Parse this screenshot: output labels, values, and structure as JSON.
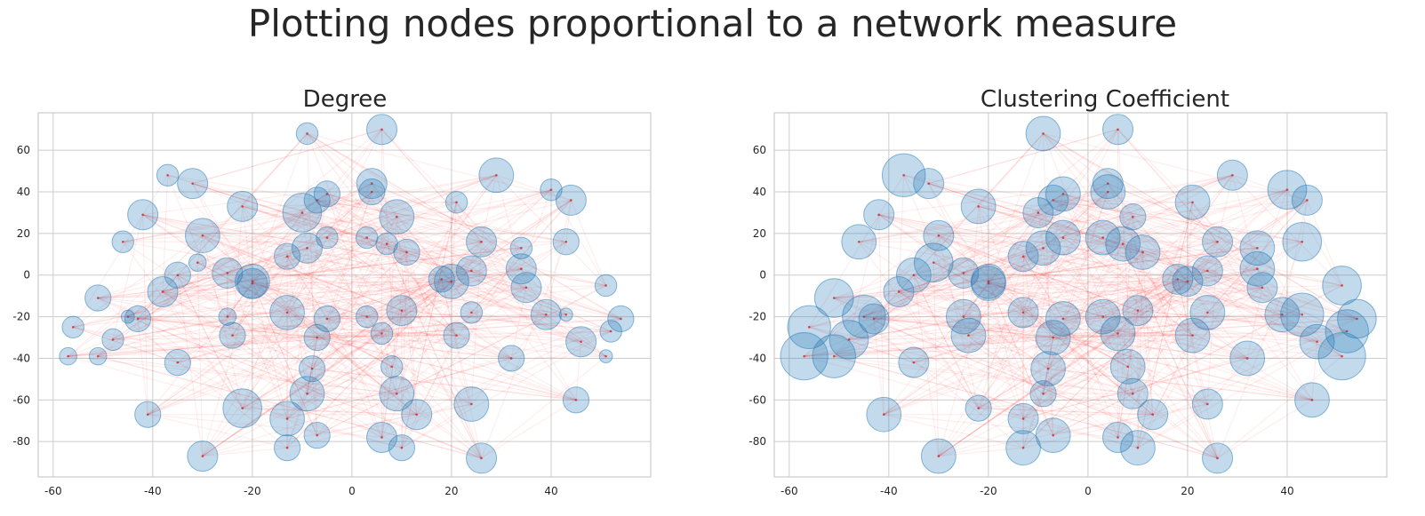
{
  "figure": {
    "suptitle": "Plotting nodes proportional to a network measure"
  },
  "colors": {
    "node_fill": "#1f77b4",
    "edge": "#ff0000",
    "center_dot": "#d62728",
    "grid": "#cccccc",
    "spine": "#cccccc",
    "text": "#262626"
  },
  "chart_data": [
    {
      "type": "scatter",
      "title": "Degree",
      "xlabel": "",
      "ylabel": "",
      "xlim": [
        -63,
        60
      ],
      "ylim": [
        -97,
        78
      ],
      "xticks": [
        -60,
        -40,
        -20,
        0,
        20,
        40
      ],
      "yticks": [
        -80,
        -60,
        -40,
        -20,
        0,
        20,
        40,
        60
      ],
      "grid": true,
      "size_measure": "degree"
    },
    {
      "type": "scatter",
      "title": "Clustering Coefficient",
      "xlabel": "",
      "ylabel": "",
      "xlim": [
        -63,
        60
      ],
      "ylim": [
        -97,
        78
      ],
      "xticks": [
        -60,
        -40,
        -20,
        0,
        20,
        40
      ],
      "yticks": [
        -80,
        -60,
        -40,
        -20,
        0,
        20,
        40,
        60
      ],
      "grid": true,
      "size_measure": "clustering"
    }
  ],
  "nodes": [
    {
      "x": -57,
      "y": -39,
      "degree": 2,
      "clustering": 9
    },
    {
      "x": -56,
      "y": -25,
      "degree": 3,
      "clustering": 8
    },
    {
      "x": -51,
      "y": -11,
      "degree": 4,
      "clustering": 7
    },
    {
      "x": -51,
      "y": -39,
      "degree": 2,
      "clustering": 8
    },
    {
      "x": -48,
      "y": -31,
      "degree": 3,
      "clustering": 7
    },
    {
      "x": -46,
      "y": 16,
      "degree": 3,
      "clustering": 6
    },
    {
      "x": -45,
      "y": -20,
      "degree": 1,
      "clustering": 8
    },
    {
      "x": -43,
      "y": -21,
      "degree": 4,
      "clustering": 5
    },
    {
      "x": -42,
      "y": 29,
      "degree": 5,
      "clustering": 5
    },
    {
      "x": -41,
      "y": -67,
      "degree": 4,
      "clustering": 6
    },
    {
      "x": -38,
      "y": -8,
      "degree": 5,
      "clustering": 5
    },
    {
      "x": -37,
      "y": 48,
      "degree": 3,
      "clustering": 8
    },
    {
      "x": -35,
      "y": 0,
      "degree": 4,
      "clustering": 6
    },
    {
      "x": -35,
      "y": -42,
      "degree": 4,
      "clustering": 5
    },
    {
      "x": -32,
      "y": 44,
      "degree": 5,
      "clustering": 5
    },
    {
      "x": -31,
      "y": 6,
      "degree": 2,
      "clustering": 7
    },
    {
      "x": -30,
      "y": 19,
      "degree": 6,
      "clustering": 5
    },
    {
      "x": -30,
      "y": -87,
      "degree": 5,
      "clustering": 6
    },
    {
      "x": -25,
      "y": 1,
      "degree": 5,
      "clustering": 5
    },
    {
      "x": -25,
      "y": -20,
      "degree": 2,
      "clustering": 6
    },
    {
      "x": -24,
      "y": -29,
      "degree": 4,
      "clustering": 6
    },
    {
      "x": -22,
      "y": 33,
      "degree": 5,
      "clustering": 6
    },
    {
      "x": -22,
      "y": -64,
      "degree": 7,
      "clustering": 4
    },
    {
      "x": -20,
      "y": -3,
      "degree": 6,
      "clustering": 6
    },
    {
      "x": -20,
      "y": -4,
      "degree": 5,
      "clustering": 6
    },
    {
      "x": -13,
      "y": 9,
      "degree": 4,
      "clustering": 5
    },
    {
      "x": -13,
      "y": -18,
      "degree": 6,
      "clustering": 5
    },
    {
      "x": -13,
      "y": -83,
      "degree": 4,
      "clustering": 6
    },
    {
      "x": -13,
      "y": -69,
      "degree": 6,
      "clustering": 5
    },
    {
      "x": -10,
      "y": 30,
      "degree": 7,
      "clustering": 5
    },
    {
      "x": -9,
      "y": 68,
      "degree": 3,
      "clustering": 6
    },
    {
      "x": -9,
      "y": 13,
      "degree": 5,
      "clustering": 6
    },
    {
      "x": -9,
      "y": -57,
      "degree": 6,
      "clustering": 4
    },
    {
      "x": -8,
      "y": -45,
      "degree": 4,
      "clustering": 6
    },
    {
      "x": -7,
      "y": -30,
      "degree": 4,
      "clustering": 6
    },
    {
      "x": -7,
      "y": -77,
      "degree": 4,
      "clustering": 6
    },
    {
      "x": -7,
      "y": 36,
      "degree": 4,
      "clustering": 5
    },
    {
      "x": -5,
      "y": 39,
      "degree": 4,
      "clustering": 6
    },
    {
      "x": -5,
      "y": -21,
      "degree": 4,
      "clustering": 6
    },
    {
      "x": -5,
      "y": 18,
      "degree": 3,
      "clustering": 6
    },
    {
      "x": 3,
      "y": 18,
      "degree": 3,
      "clustering": 6
    },
    {
      "x": 3,
      "y": -20,
      "degree": 3,
      "clustering": 6
    },
    {
      "x": 4,
      "y": 44,
      "degree": 5,
      "clustering": 5
    },
    {
      "x": 4,
      "y": 40,
      "degree": 4,
      "clustering": 6
    },
    {
      "x": 6,
      "y": 70,
      "degree": 5,
      "clustering": 5
    },
    {
      "x": 6,
      "y": -28,
      "degree": 3,
      "clustering": 6
    },
    {
      "x": 6,
      "y": -78,
      "degree": 5,
      "clustering": 5
    },
    {
      "x": 7,
      "y": 15,
      "degree": 3,
      "clustering": 6
    },
    {
      "x": 8,
      "y": -44,
      "degree": 3,
      "clustering": 6
    },
    {
      "x": 9,
      "y": 28,
      "degree": 6,
      "clustering": 4
    },
    {
      "x": 9,
      "y": -57,
      "degree": 6,
      "clustering": 5
    },
    {
      "x": 10,
      "y": -17,
      "degree": 5,
      "clustering": 5
    },
    {
      "x": 10,
      "y": -83,
      "degree": 4,
      "clustering": 6
    },
    {
      "x": 11,
      "y": 11,
      "degree": 4,
      "clustering": 6
    },
    {
      "x": 13,
      "y": -67,
      "degree": 5,
      "clustering": 5
    },
    {
      "x": 18,
      "y": -2,
      "degree": 4,
      "clustering": 5
    },
    {
      "x": 20,
      "y": -3,
      "degree": 6,
      "clustering": 5
    },
    {
      "x": 21,
      "y": 35,
      "degree": 3,
      "clustering": 6
    },
    {
      "x": 21,
      "y": -29,
      "degree": 4,
      "clustering": 6
    },
    {
      "x": 24,
      "y": 2,
      "degree": 5,
      "clustering": 5
    },
    {
      "x": 24,
      "y": -18,
      "degree": 3,
      "clustering": 6
    },
    {
      "x": 24,
      "y": -62,
      "degree": 6,
      "clustering": 5
    },
    {
      "x": 26,
      "y": 16,
      "degree": 5,
      "clustering": 5
    },
    {
      "x": 26,
      "y": -88,
      "degree": 5,
      "clustering": 5
    },
    {
      "x": 29,
      "y": 48,
      "degree": 6,
      "clustering": 5
    },
    {
      "x": 32,
      "y": -40,
      "degree": 4,
      "clustering": 6
    },
    {
      "x": 34,
      "y": 13,
      "degree": 3,
      "clustering": 6
    },
    {
      "x": 34,
      "y": 3,
      "degree": 5,
      "clustering": 6
    },
    {
      "x": 35,
      "y": -6,
      "degree": 5,
      "clustering": 5
    },
    {
      "x": 39,
      "y": -19,
      "degree": 5,
      "clustering": 6
    },
    {
      "x": 40,
      "y": 41,
      "degree": 3,
      "clustering": 7
    },
    {
      "x": 43,
      "y": 16,
      "degree": 4,
      "clustering": 7
    },
    {
      "x": 43,
      "y": -19,
      "degree": 1,
      "clustering": 8
    },
    {
      "x": 44,
      "y": 36,
      "degree": 5,
      "clustering": 5
    },
    {
      "x": 45,
      "y": -60,
      "degree": 4,
      "clustering": 6
    },
    {
      "x": 46,
      "y": -32,
      "degree": 5,
      "clustering": 6
    },
    {
      "x": 51,
      "y": -5,
      "degree": 3,
      "clustering": 7
    },
    {
      "x": 51,
      "y": -39,
      "degree": 1,
      "clustering": 9
    },
    {
      "x": 52,
      "y": -27,
      "degree": 3,
      "clustering": 8
    },
    {
      "x": 54,
      "y": -21,
      "degree": 4,
      "clustering": 7
    }
  ]
}
